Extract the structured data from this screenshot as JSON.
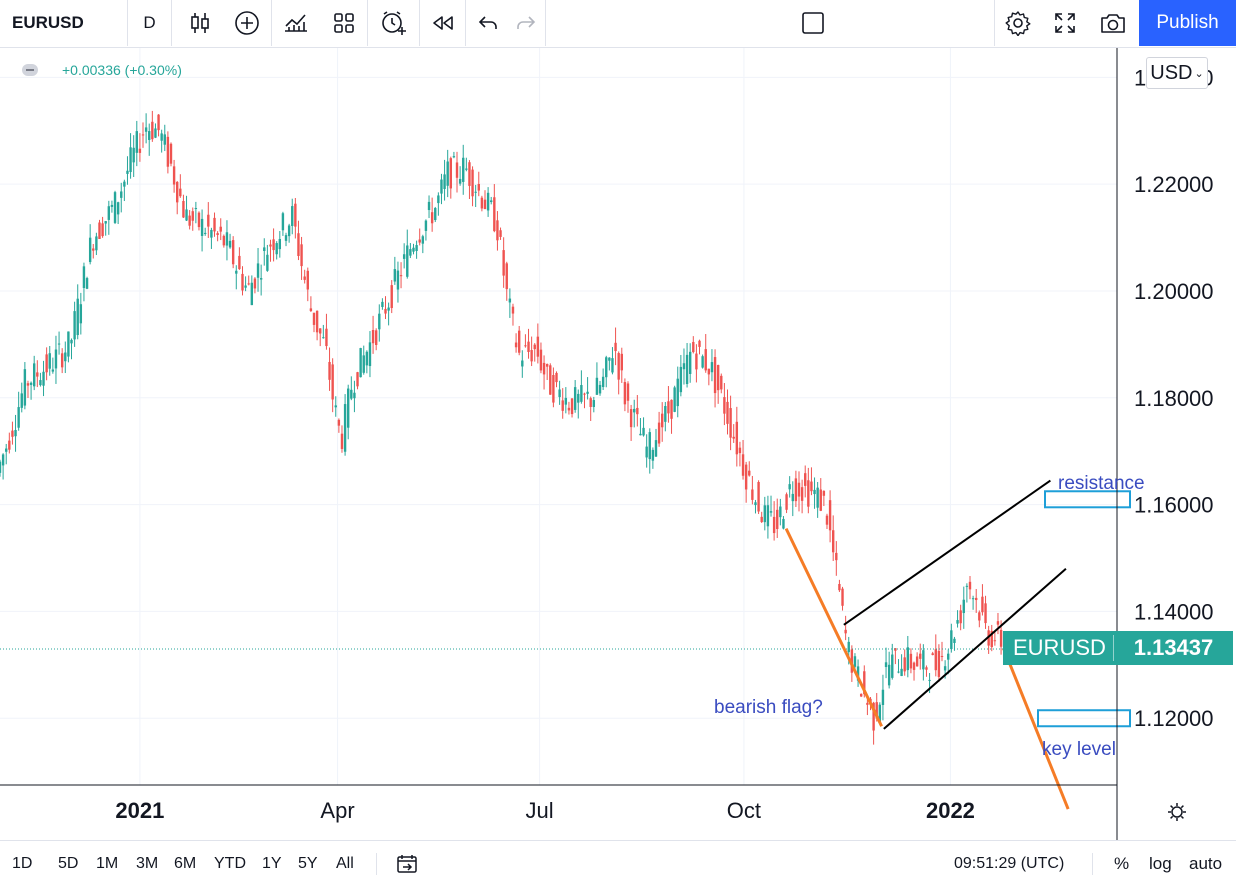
{
  "toolbar": {
    "symbol": "EURUSD",
    "interval": "D",
    "publish_label": "Publish"
  },
  "legend": {
    "change": "+0.00336 (+0.30%)"
  },
  "currency": {
    "label": "USD"
  },
  "price_tag": {
    "symbol": "EURUSD",
    "price": "1.13437"
  },
  "annotations": {
    "resistance": "resistance",
    "key_level": "key level",
    "bearish_flag": "bearish flag?"
  },
  "bottom": {
    "ranges": [
      "1D",
      "5D",
      "1M",
      "3M",
      "6M",
      "YTD",
      "1Y",
      "5Y",
      "All"
    ],
    "clock": "09:51:29 (UTC)",
    "percent": "%",
    "log": "log",
    "auto": "auto"
  },
  "colors": {
    "up": "#26a69a",
    "down": "#ef5350",
    "accent": "#2962ff",
    "flag_line": "#f57c26",
    "zone_box": "#1e9fd8",
    "annotation_text": "#3a4cc0"
  },
  "chart_data": {
    "type": "candlestick",
    "symbol": "EURUSD",
    "interval": "D",
    "last_price": 1.13437,
    "y_ticks": [
      "1.24000",
      "1.22000",
      "1.20000",
      "1.18000",
      "1.16000",
      "1.14000",
      "1.12000"
    ],
    "ylim": [
      1.1075,
      1.2455
    ],
    "x_ticks": [
      "2021",
      "Apr",
      "Jul",
      "Oct",
      "2022"
    ],
    "x_tick_days": [
      0,
      89,
      180,
      272,
      365
    ],
    "xlim": [
      -63,
      440
    ],
    "guide_points": [
      [
        -63,
        1.166
      ],
      [
        -58,
        1.172
      ],
      [
        -50,
        1.183
      ],
      [
        -40,
        1.186
      ],
      [
        -30,
        1.19
      ],
      [
        -20,
        1.21
      ],
      [
        -10,
        1.216
      ],
      [
        -2,
        1.225
      ],
      [
        4,
        1.231
      ],
      [
        10,
        1.23
      ],
      [
        15,
        1.224
      ],
      [
        22,
        1.214
      ],
      [
        30,
        1.212
      ],
      [
        40,
        1.209
      ],
      [
        50,
        1.2
      ],
      [
        60,
        1.209
      ],
      [
        70,
        1.214
      ],
      [
        78,
        1.197
      ],
      [
        85,
        1.189
      ],
      [
        89,
        1.178
      ],
      [
        92,
        1.172
      ],
      [
        97,
        1.183
      ],
      [
        105,
        1.19
      ],
      [
        115,
        1.2
      ],
      [
        125,
        1.21
      ],
      [
        135,
        1.216
      ],
      [
        140,
        1.222
      ],
      [
        148,
        1.223
      ],
      [
        155,
        1.218
      ],
      [
        162,
        1.213
      ],
      [
        167,
        1.198
      ],
      [
        172,
        1.188
      ],
      [
        180,
        1.189
      ],
      [
        185,
        1.183
      ],
      [
        195,
        1.179
      ],
      [
        205,
        1.18
      ],
      [
        210,
        1.183
      ],
      [
        215,
        1.19
      ],
      [
        220,
        1.18
      ],
      [
        230,
        1.17
      ],
      [
        240,
        1.178
      ],
      [
        250,
        1.189
      ],
      [
        258,
        1.186
      ],
      [
        265,
        1.178
      ],
      [
        275,
        1.165
      ],
      [
        282,
        1.158
      ],
      [
        288,
        1.156
      ],
      [
        295,
        1.164
      ],
      [
        305,
        1.162
      ],
      [
        310,
        1.16
      ],
      [
        315,
        1.147
      ],
      [
        320,
        1.133
      ],
      [
        327,
        1.125
      ],
      [
        332,
        1.12
      ],
      [
        338,
        1.13
      ],
      [
        345,
        1.131
      ],
      [
        352,
        1.13
      ],
      [
        360,
        1.13
      ],
      [
        365,
        1.133
      ],
      [
        371,
        1.14
      ],
      [
        374,
        1.146
      ],
      [
        378,
        1.142
      ],
      [
        383,
        1.136
      ],
      [
        390,
        1.1344
      ]
    ],
    "pattern_lines": {
      "channel_upper": [
        [
          317,
          1.1375
        ],
        [
          410,
          1.1645
        ]
      ],
      "channel_lower": [
        [
          335,
          1.118
        ],
        [
          417,
          1.148
        ]
      ],
      "flag_pole": [
        [
          291,
          1.1555
        ],
        [
          334,
          1.1185
        ]
      ],
      "projection": [
        [
          389,
          1.133
        ],
        [
          418,
          1.103
        ]
      ]
    },
    "zones": {
      "resistance": [
        1.1595,
        1.1625
      ],
      "key_level": [
        1.1185,
        1.1215
      ]
    }
  }
}
